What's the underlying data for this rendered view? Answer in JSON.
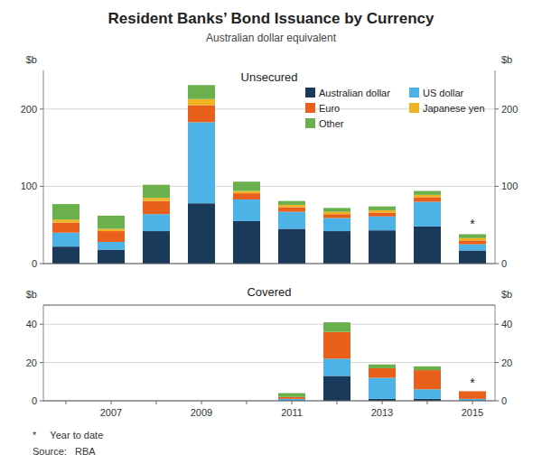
{
  "chart_data": [
    {
      "type": "bar",
      "stacked": true,
      "title": "Resident Banks’ Bond Issuance by Currency",
      "subtitle": "Australian dollar equivalent",
      "y_label": "$b",
      "y2_label": "$b",
      "categories": [
        null,
        null,
        null,
        null,
        null,
        null,
        null,
        null,
        null,
        null
      ],
      "tick_labels": "y",
      "series": [
        {
          "name": "Australian dollar",
          "color": "#1a3a5c",
          "values": [
            22,
            18,
            42,
            78,
            55,
            45,
            42,
            43,
            48,
            17
          ]
        },
        {
          "name": "US dollar",
          "color": "#4db3e6",
          "values": [
            18,
            10,
            22,
            105,
            28,
            22,
            17,
            18,
            32,
            8
          ]
        },
        {
          "name": "Euro",
          "color": "#e8601c",
          "values": [
            13,
            14,
            17,
            22,
            8,
            6,
            5,
            5,
            6,
            5
          ]
        },
        {
          "name": "Japanese yen",
          "color": "#f0b323",
          "values": [
            4,
            3,
            4,
            8,
            3,
            3,
            3,
            3,
            3,
            3
          ]
        },
        {
          "name": "Other",
          "color": "#6ab04c",
          "values": [
            20,
            17,
            17,
            18,
            12,
            5,
            5,
            5,
            5,
            5
          ]
        }
      ],
      "ylim": [
        0,
        250
      ],
      "yticks": [
        0,
        100,
        200
      ],
      "y2lim": [
        0,
        250
      ],
      "y2ticks": [
        0,
        100,
        200
      ],
      "grid": true,
      "legend": "upper right",
      "annotations": [
        {
          "text": "Unsecured"
        },
        {
          "text": "*",
          "y": 50
        }
      ]
    },
    {
      "type": "bar",
      "stacked": true,
      "title": "Covered",
      "y_label": "$b",
      "y2_label": "$b",
      "categories": [
        null,
        "2007",
        null,
        "2009",
        null,
        "2011",
        null,
        "2013",
        null,
        "2015"
      ],
      "series": [
        {
          "color": "#1a3a5c",
          "values": [
            0,
            0,
            0,
            0,
            0,
            0,
            13,
            1,
            1,
            0
          ]
        },
        {
          "color": "#4db3e6",
          "values": [
            0,
            0,
            0,
            0,
            0,
            1,
            9,
            11,
            5,
            1
          ]
        },
        {
          "color": "#e8601c",
          "values": [
            0,
            0,
            0,
            0,
            0,
            1,
            14,
            5,
            10,
            4
          ]
        },
        {
          "color": "#f0b323",
          "values": [
            0,
            0,
            0,
            0,
            0,
            0,
            0,
            0,
            0,
            0
          ]
        },
        {
          "color": "#6ab04c",
          "values": [
            0,
            0,
            0,
            0,
            0,
            2,
            5,
            2,
            2,
            0
          ]
        }
      ],
      "ylim": [
        0,
        50
      ],
      "yticks": [
        0,
        20,
        40
      ],
      "y2lim": [
        0,
        50
      ],
      "y2ticks": [
        0,
        20,
        40
      ],
      "grid": true,
      "annotations": [
        {
          "text": "*",
          "y": 9
        },
        {
          "text": "*     Year to date"
        },
        {
          "text": "Source:   RBA"
        }
      ]
    }
  ]
}
